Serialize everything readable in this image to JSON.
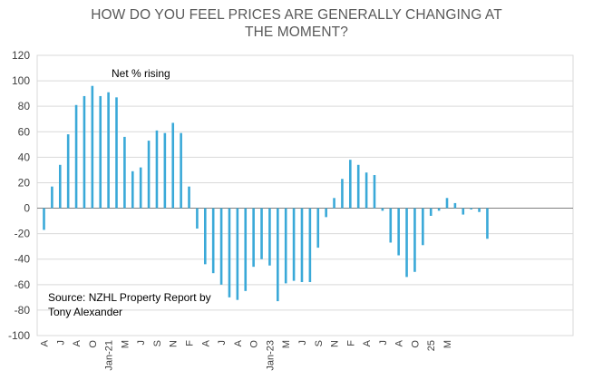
{
  "chart_data": {
    "type": "bar",
    "title": [
      "HOW DO YOU FEEL PRICES ARE GENERALLY CHANGING AT",
      "THE MOMENT?"
    ],
    "ylim": [
      -100,
      120
    ],
    "yticks": [
      -100,
      -80,
      -60,
      -40,
      -20,
      0,
      20,
      40,
      60,
      80,
      100,
      120
    ],
    "grid": true,
    "bar_color": "#3aa9d8",
    "series": [
      {
        "values": [
          -17,
          17,
          34,
          58,
          81,
          88,
          96,
          88,
          91,
          87,
          56,
          29,
          32,
          53,
          61,
          59,
          67,
          59,
          17,
          -16,
          -44,
          -51,
          -60,
          -70,
          -72,
          -65,
          -46,
          -40,
          -45,
          -73,
          -59,
          -57,
          -58,
          -58,
          -31,
          -7,
          8,
          23,
          38,
          34,
          28,
          26,
          -2,
          -27,
          -37,
          -54,
          -50,
          -29,
          -6,
          -2,
          8,
          4,
          -5,
          -1,
          -3,
          -24
        ]
      }
    ],
    "x_tick_labels": [
      "A",
      "J",
      "A",
      "O",
      "Jan-21",
      "M",
      "J",
      "S",
      "N",
      "F",
      "A",
      "J",
      "A",
      "O",
      "Jan-23",
      "M",
      "J",
      "S",
      "N",
      "F",
      "A",
      "J",
      "A",
      "O",
      "25",
      "M"
    ],
    "annotations": [
      "Net % rising",
      "Source: NZHL  Property Report by",
      "Tony Alexander"
    ]
  }
}
